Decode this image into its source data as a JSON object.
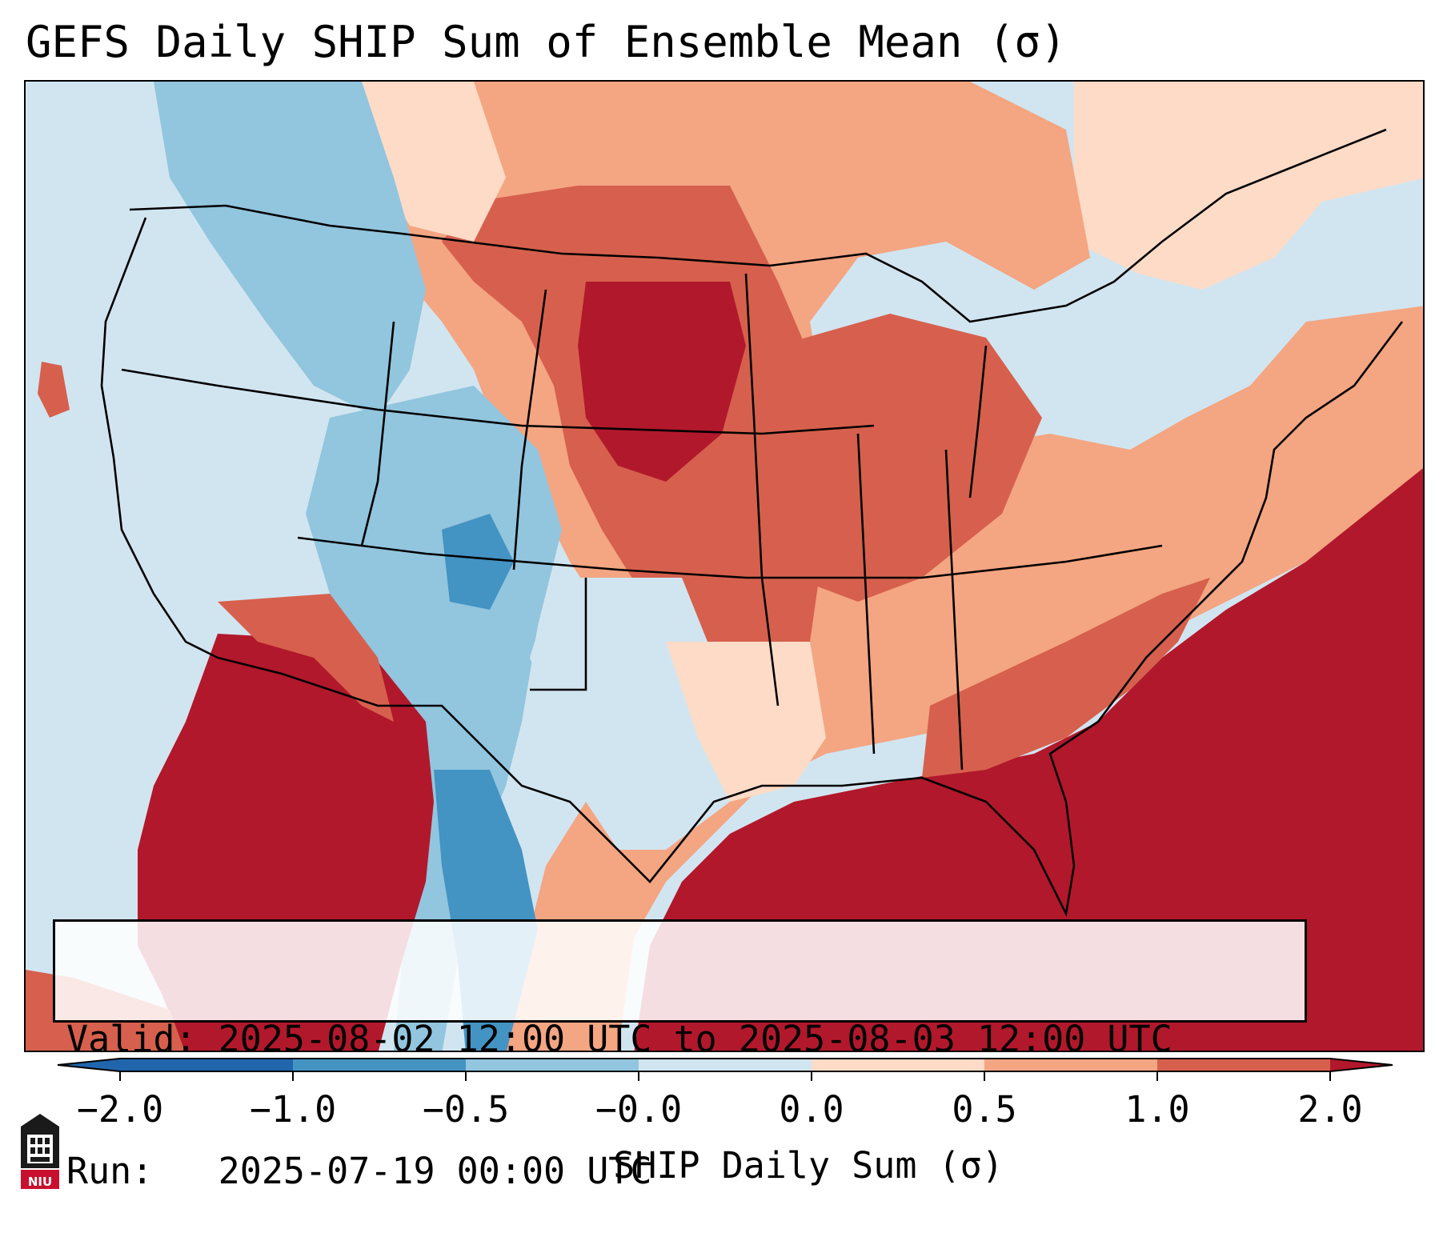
{
  "title": "GEFS Daily SHIP Sum of Ensemble Mean (σ)",
  "info": {
    "valid_line": "Valid: 2025-08-02 12:00 UTC to 2025-08-03 12:00 UTC",
    "run_line": "Run:   2025-07-19 00:00 UTC"
  },
  "colorbar": {
    "label": "SHIP Daily Sum (σ)",
    "tick_labels": [
      "−2.0",
      "−1.0",
      "−0.5",
      "−0.0",
      "0.0",
      "0.5",
      "1.0",
      "2.0"
    ],
    "colors": [
      "#2166ac",
      "#4393c3",
      "#92c5de",
      "#d1e5f0",
      "#fddbc7",
      "#f4a582",
      "#d6604d",
      "#b2182b"
    ],
    "extend": "both"
  },
  "logo": {
    "name": "niu-logo-icon",
    "text": "NIU",
    "color": "#c8102e"
  },
  "map": {
    "region": "Contiguous United States",
    "features": [
      "state-borders",
      "coastlines",
      "country-borders"
    ]
  }
}
